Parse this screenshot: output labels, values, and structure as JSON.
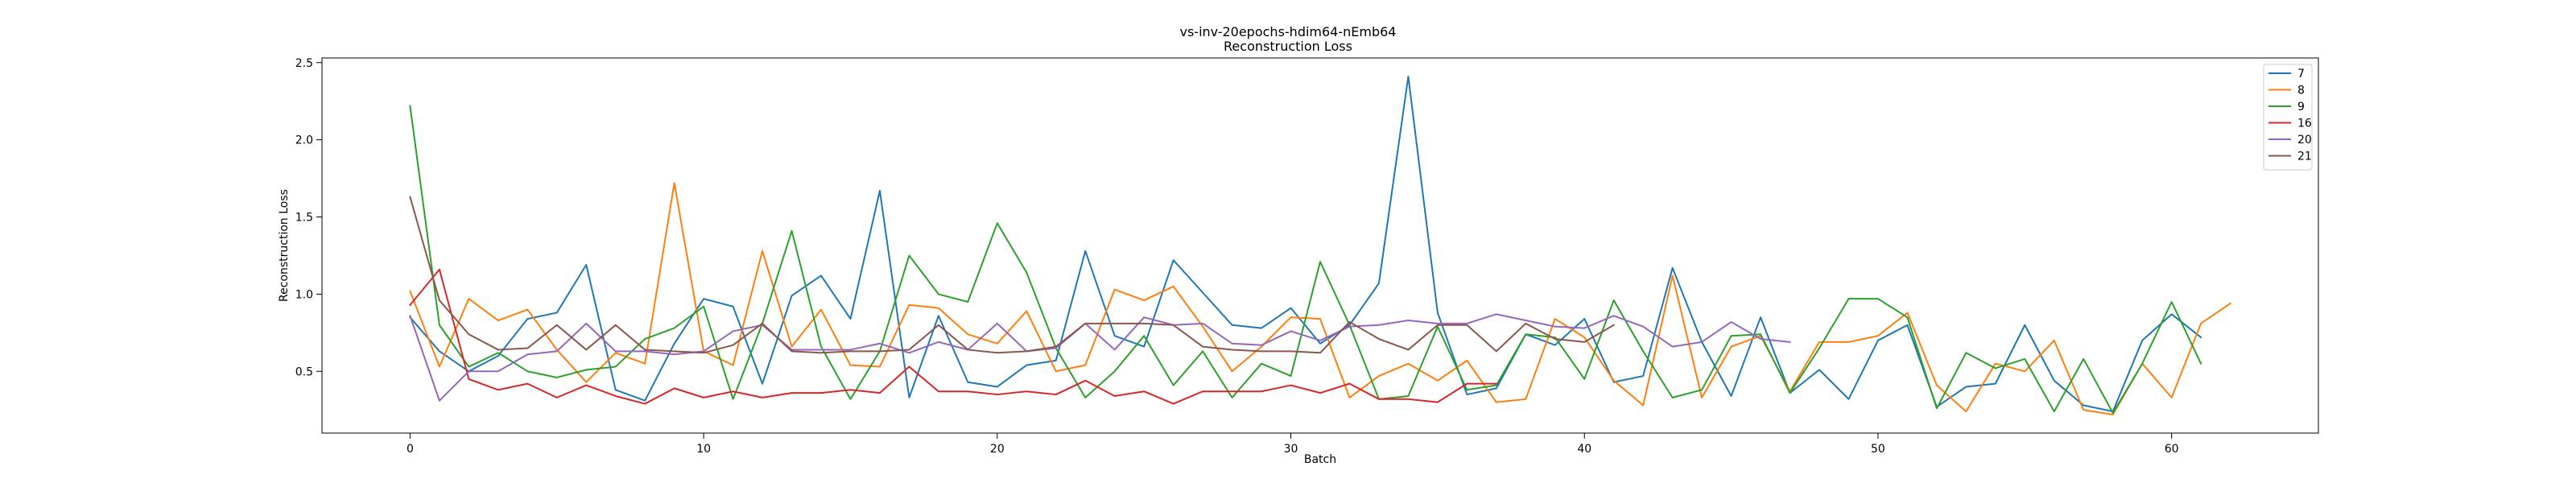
{
  "chart_data": {
    "type": "line",
    "title": "vs-inv-20epochs-hdim64-nEmb64",
    "subtitle": "Reconstruction Loss",
    "xlabel": "Batch",
    "ylabel": "Reconstruction Loss",
    "xlim": [
      -3,
      65
    ],
    "ylim": [
      0.1,
      2.53
    ],
    "xticks": [
      0,
      10,
      20,
      30,
      40,
      50,
      60
    ],
    "yticks": [
      0.5,
      1.0,
      1.5,
      2.0,
      2.5
    ],
    "xtick_labels": [
      "0",
      "10",
      "20",
      "30",
      "40",
      "50",
      "60"
    ],
    "ytick_labels": [
      "0.5",
      "1.0",
      "1.5",
      "2.0",
      "2.5"
    ],
    "grid": false,
    "legend_position": "top-right",
    "series": [
      {
        "name": "7",
        "color": "#1f77b4",
        "values": [
          0.85,
          0.63,
          0.5,
          0.6,
          0.84,
          0.88,
          1.19,
          0.38,
          0.31,
          0.68,
          0.97,
          0.92,
          0.42,
          0.99,
          1.12,
          0.84,
          1.67,
          0.33,
          0.86,
          0.43,
          0.4,
          0.54,
          0.57,
          1.28,
          0.73,
          0.66,
          1.22,
          1.01,
          0.8,
          0.78,
          0.91,
          0.68,
          0.8,
          1.07,
          2.41,
          0.88,
          0.35,
          0.39,
          0.74,
          0.67,
          0.84,
          0.43,
          0.47,
          1.17,
          0.69,
          0.34,
          0.85,
          0.36,
          0.51,
          0.32,
          0.7,
          0.8,
          0.27,
          0.4,
          0.42,
          0.8,
          0.44,
          0.28,
          0.24,
          0.7,
          0.87,
          0.72
        ]
      },
      {
        "name": "8",
        "color": "#ff7f0e",
        "values": [
          1.02,
          0.53,
          0.97,
          0.83,
          0.9,
          0.64,
          0.43,
          0.62,
          0.55,
          1.72,
          0.63,
          0.54,
          1.28,
          0.66,
          0.9,
          0.54,
          0.53,
          0.93,
          0.91,
          0.74,
          0.68,
          0.89,
          0.5,
          0.54,
          1.03,
          0.96,
          1.05,
          0.79,
          0.5,
          0.66,
          0.85,
          0.84,
          0.33,
          0.47,
          0.55,
          0.44,
          0.57,
          0.3,
          0.32,
          0.84,
          0.72,
          0.44,
          0.28,
          1.12,
          0.33,
          0.66,
          0.73,
          0.37,
          0.69,
          0.69,
          0.73,
          0.88,
          0.41,
          0.24,
          0.55,
          0.5,
          0.7,
          0.25,
          0.22,
          0.55,
          0.33,
          0.81,
          0.94
        ]
      },
      {
        "name": "9",
        "color": "#2ca02c",
        "values": [
          2.22,
          0.8,
          0.53,
          0.62,
          0.5,
          0.46,
          0.51,
          0.53,
          0.71,
          0.78,
          0.92,
          0.32,
          0.81,
          1.41,
          0.66,
          0.32,
          0.63,
          1.25,
          1.0,
          0.95,
          1.46,
          1.14,
          0.65,
          0.33,
          0.5,
          0.73,
          0.41,
          0.63,
          0.33,
          0.55,
          0.47,
          1.21,
          0.8,
          0.32,
          0.34,
          0.79,
          0.38,
          0.41,
          0.74,
          0.72,
          0.45,
          0.96,
          0.63,
          0.33,
          0.38,
          0.73,
          0.74,
          0.36,
          0.65,
          0.97,
          0.97,
          0.85,
          0.26,
          0.62,
          0.52,
          0.58,
          0.24,
          0.58,
          0.23,
          0.55,
          0.95,
          0.55
        ]
      },
      {
        "name": "16",
        "color": "#d62728",
        "values": [
          0.93,
          1.16,
          0.45,
          0.38,
          0.42,
          0.33,
          0.41,
          0.34,
          0.29,
          0.39,
          0.33,
          0.37,
          0.33,
          0.36,
          0.36,
          0.38,
          0.36,
          0.53,
          0.37,
          0.37,
          0.35,
          0.37,
          0.35,
          0.44,
          0.34,
          0.37,
          0.29,
          0.37,
          0.37,
          0.37,
          0.41,
          0.36,
          0.42,
          0.32,
          0.32,
          0.3,
          0.42,
          0.42
        ]
      },
      {
        "name": "20",
        "color": "#9467bd",
        "values": [
          0.86,
          0.31,
          0.5,
          0.5,
          0.61,
          0.63,
          0.81,
          0.63,
          0.63,
          0.61,
          0.63,
          0.76,
          0.8,
          0.64,
          0.64,
          0.64,
          0.68,
          0.62,
          0.69,
          0.64,
          0.81,
          0.63,
          0.65,
          0.81,
          0.64,
          0.85,
          0.8,
          0.81,
          0.68,
          0.67,
          0.76,
          0.7,
          0.79,
          0.8,
          0.83,
          0.81,
          0.81,
          0.87,
          0.83,
          0.79,
          0.78,
          0.86,
          0.79,
          0.66,
          0.69,
          0.82,
          0.71,
          0.69
        ]
      },
      {
        "name": "21",
        "color": "#8c564b",
        "values": [
          1.63,
          0.96,
          0.74,
          0.64,
          0.65,
          0.8,
          0.64,
          0.8,
          0.64,
          0.63,
          0.62,
          0.67,
          0.81,
          0.63,
          0.62,
          0.63,
          0.63,
          0.64,
          0.8,
          0.64,
          0.62,
          0.63,
          0.66,
          0.81,
          0.81,
          0.81,
          0.8,
          0.66,
          0.64,
          0.63,
          0.63,
          0.62,
          0.82,
          0.71,
          0.64,
          0.8,
          0.8,
          0.63,
          0.81,
          0.71,
          0.69,
          0.8
        ]
      }
    ]
  }
}
